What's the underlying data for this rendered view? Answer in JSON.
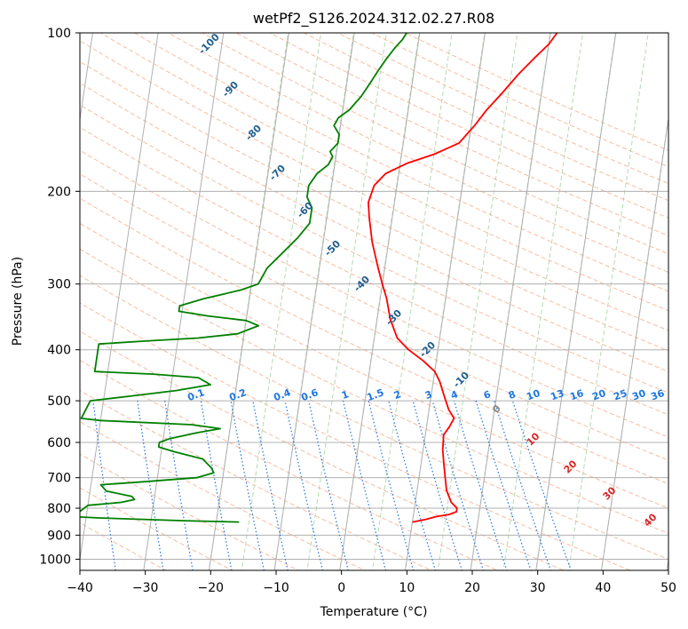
{
  "chart_data": {
    "type": "line",
    "title": "wetPf2_S126.2024.312.02.27.R08",
    "xlabel": "Temperature (°C)",
    "ylabel": "Pressure (hPa)",
    "xlim": [
      -40,
      50
    ],
    "ylim": [
      1050,
      100
    ],
    "y_scale": "log",
    "grid": true,
    "x_ticks": [
      -40,
      -30,
      -20,
      -10,
      0,
      10,
      20,
      30,
      40,
      50
    ],
    "y_ticks": [
      100,
      200,
      300,
      400,
      500,
      600,
      700,
      800,
      900,
      1000
    ],
    "series": [
      {
        "color": "#ff0000",
        "points": [
          [
            10.0,
            850
          ],
          [
            12.0,
            840
          ],
          [
            13.5,
            830
          ],
          [
            15.5,
            822
          ],
          [
            16.5,
            812
          ],
          [
            16.5,
            800
          ],
          [
            15.5,
            780
          ],
          [
            14.5,
            740
          ],
          [
            14.0,
            700
          ],
          [
            13.5,
            660
          ],
          [
            13.0,
            620
          ],
          [
            12.8,
            580
          ],
          [
            13.5,
            560
          ],
          [
            14.0,
            540
          ],
          [
            13.0,
            520
          ],
          [
            12.0,
            490
          ],
          [
            11.0,
            460
          ],
          [
            10.0,
            440
          ],
          [
            8.0,
            420
          ],
          [
            5.5,
            400
          ],
          [
            3.5,
            380
          ],
          [
            2.0,
            350
          ],
          [
            1.0,
            320
          ],
          [
            0.0,
            300
          ],
          [
            -1.0,
            280
          ],
          [
            -2.5,
            250
          ],
          [
            -3.5,
            225
          ],
          [
            -4.0,
            210
          ],
          [
            -3.5,
            195
          ],
          [
            -2.0,
            185
          ],
          [
            1.0,
            177
          ],
          [
            5.0,
            170
          ],
          [
            8.5,
            162
          ],
          [
            10.5,
            150
          ],
          [
            12.0,
            140
          ],
          [
            14.0,
            130
          ],
          [
            16.0,
            120
          ],
          [
            18.0,
            112
          ],
          [
            20.0,
            105
          ],
          [
            21.0,
            100
          ]
        ]
      },
      {
        "color": "#008000",
        "points": [
          [
            -16.5,
            850
          ],
          [
            -25.0,
            845
          ],
          [
            -38.0,
            835
          ],
          [
            -42.0,
            830
          ],
          [
            -40.0,
            790
          ],
          [
            -35.0,
            780
          ],
          [
            -33.0,
            770
          ],
          [
            -33.5,
            760
          ],
          [
            -37.5,
            742
          ],
          [
            -38.5,
            722
          ],
          [
            -33.0,
            714
          ],
          [
            -24.0,
            700
          ],
          [
            -21.5,
            685
          ],
          [
            -22.0,
            670
          ],
          [
            -23.5,
            645
          ],
          [
            -28.0,
            625
          ],
          [
            -30.5,
            612
          ],
          [
            -30.5,
            600
          ],
          [
            -29.0,
            590
          ],
          [
            -25.0,
            575
          ],
          [
            -21.5,
            565
          ],
          [
            -26.0,
            555
          ],
          [
            -40.0,
            545
          ],
          [
            -43.0,
            540
          ],
          [
            -42.0,
            500
          ],
          [
            -36.0,
            490
          ],
          [
            -29.0,
            478
          ],
          [
            -24.0,
            466
          ],
          [
            -26.0,
            452
          ],
          [
            -33.0,
            445
          ],
          [
            -42.0,
            440
          ],
          [
            -42.0,
            390
          ],
          [
            -35.0,
            385
          ],
          [
            -27.0,
            380
          ],
          [
            -21.0,
            373
          ],
          [
            -18.0,
            360
          ],
          [
            -20.0,
            352
          ],
          [
            -26.0,
            345
          ],
          [
            -30.5,
            338
          ],
          [
            -30.5,
            330
          ],
          [
            -27.0,
            320
          ],
          [
            -21.5,
            308
          ],
          [
            -19.0,
            300
          ],
          [
            -18.5,
            290
          ],
          [
            -18.0,
            280
          ],
          [
            -16.0,
            262
          ],
          [
            -14.0,
            245
          ],
          [
            -12.5,
            230
          ],
          [
            -12.5,
            215
          ],
          [
            -13.5,
            205
          ],
          [
            -13.5,
            195
          ],
          [
            -12.5,
            185
          ],
          [
            -11.0,
            178
          ],
          [
            -10.5,
            172
          ],
          [
            -11.0,
            168
          ],
          [
            -10.0,
            162
          ],
          [
            -10.0,
            156
          ],
          [
            -11.0,
            150
          ],
          [
            -10.5,
            145
          ],
          [
            -9.0,
            140
          ],
          [
            -7.5,
            132
          ],
          [
            -6.5,
            125
          ],
          [
            -5.5,
            118
          ],
          [
            -4.5,
            112
          ],
          [
            -3.5,
            107
          ],
          [
            -2.5,
            103
          ],
          [
            -2.0,
            100
          ]
        ]
      }
    ],
    "dry_adiabat_labels": [
      "-100",
      "-90",
      "-80",
      "-70",
      "-60",
      "-50",
      "-40",
      "-30",
      "-20",
      "-10",
      "0",
      "10",
      "20",
      "30",
      "40"
    ],
    "mixing_ratio_labels": [
      "0.1",
      "0.2",
      "0.4",
      "0.6",
      "1",
      "1.5",
      "2",
      "3",
      "4",
      "6",
      "8",
      "10",
      "13",
      "16",
      "20",
      "25",
      "30",
      "36"
    ]
  },
  "colors": {
    "temperature": "#ff0000",
    "dewpoint": "#008000",
    "grid": "#b0b0b0",
    "dry_adiabat": "#f4a582",
    "moist_adiabat": "#9fd29f",
    "mixing_ratio": "#1f77e0",
    "isotherm_label_dark": "#1f5f8f",
    "isotherm_label_red": "#d62728"
  }
}
